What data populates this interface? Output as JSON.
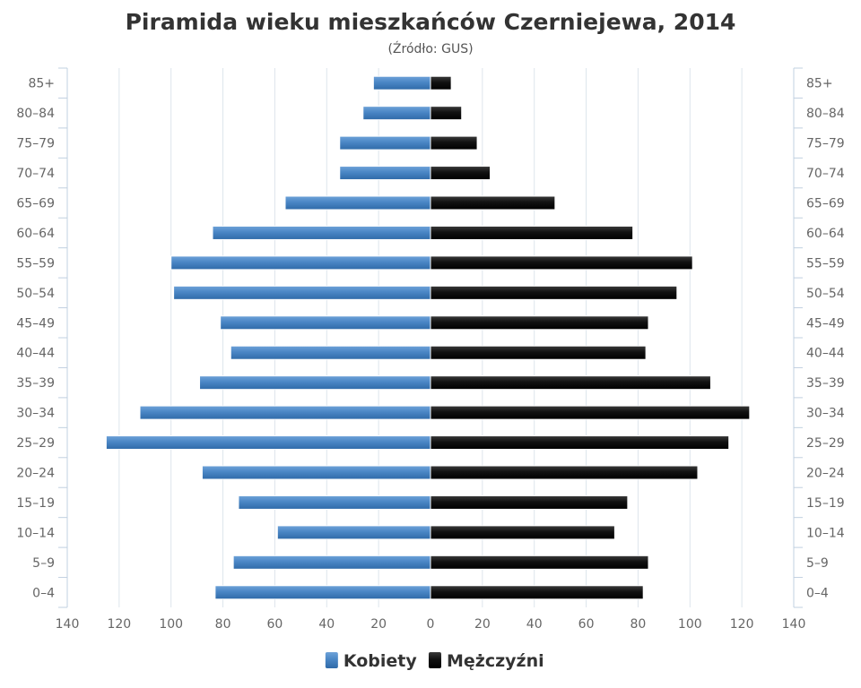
{
  "chart_data": {
    "type": "bar",
    "orientation": "horizontal",
    "layout": "population-pyramid",
    "title": "Piramida wieku mieszkańców Czerniejewa, 2014",
    "subtitle": "(Źródło: GUS)",
    "categories": [
      "85+",
      "80–84",
      "75–79",
      "70–74",
      "65–69",
      "60–64",
      "55–59",
      "50–54",
      "45–49",
      "40–44",
      "35–39",
      "30–34",
      "25–29",
      "20–24",
      "15–19",
      "10–14",
      "5–9",
      "0–4"
    ],
    "series": [
      {
        "name": "Kobiety",
        "side": "left",
        "color": "#4a86c5",
        "values": [
          22,
          26,
          35,
          35,
          56,
          84,
          100,
          99,
          81,
          77,
          89,
          112,
          125,
          88,
          74,
          59,
          76,
          83
        ]
      },
      {
        "name": "Mężczyźni",
        "side": "right",
        "color": "#111111",
        "values": [
          8,
          12,
          18,
          23,
          48,
          78,
          101,
          95,
          84,
          83,
          108,
          123,
          115,
          103,
          76,
          71,
          84,
          82
        ]
      }
    ],
    "xlim": [
      -140,
      140
    ],
    "x_ticks": [
      -140,
      -120,
      -100,
      -80,
      -60,
      -40,
      -20,
      0,
      20,
      40,
      60,
      80,
      100,
      120,
      140
    ],
    "x_tick_labels": [
      "140",
      "120",
      "100",
      "80",
      "60",
      "40",
      "20",
      "0",
      "20",
      "40",
      "60",
      "80",
      "100",
      "120",
      "140"
    ],
    "category_labels_both_sides": true,
    "grid": true,
    "legend_position": "bottom-center"
  }
}
